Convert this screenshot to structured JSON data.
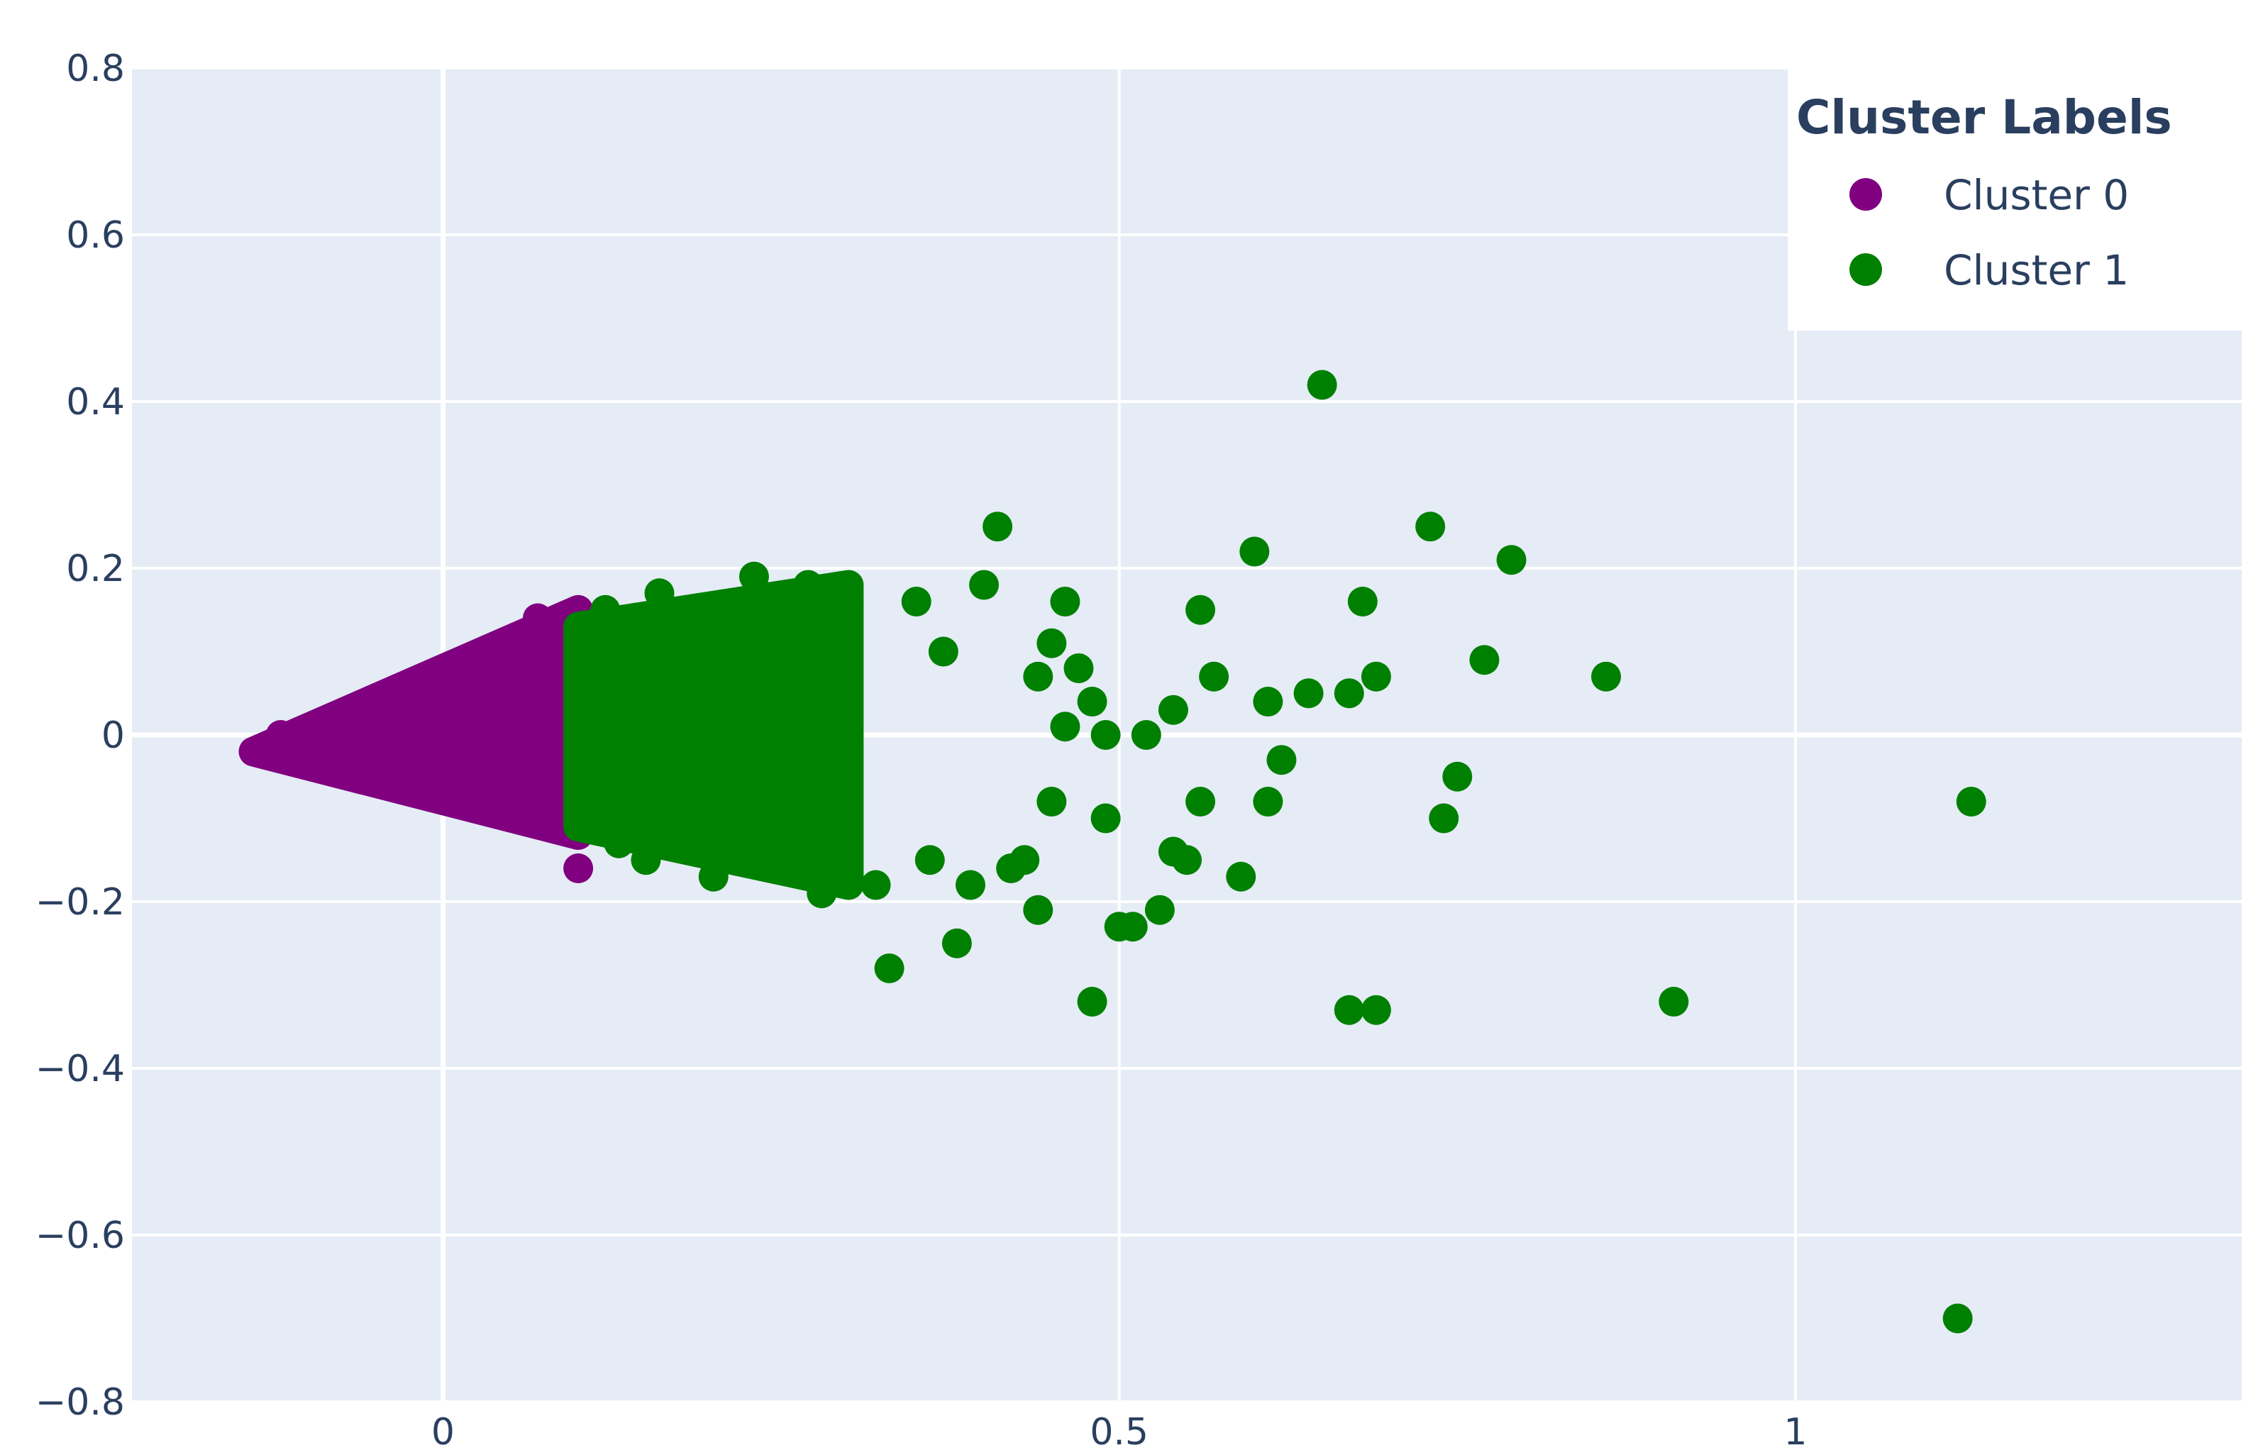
{
  "chart_data": {
    "type": "scatter",
    "title": "",
    "xlabel": "",
    "ylabel": "",
    "xlim": [
      -0.23,
      1.33
    ],
    "ylim": [
      -0.8,
      0.8
    ],
    "x_ticks": [
      0,
      0.5,
      1
    ],
    "x_tick_labels": [
      "0",
      "0.5",
      "1"
    ],
    "y_ticks": [
      0.8,
      0.6,
      0.4,
      0.2,
      0,
      -0.2,
      -0.4,
      -0.6,
      -0.8
    ],
    "y_tick_labels": [
      "0.8",
      "0.6",
      "0.4",
      "0.2",
      "0",
      "−0.2",
      "−0.4",
      "−0.6",
      "−0.8"
    ],
    "grid": true,
    "legend": {
      "title": "Cluster Labels",
      "placement": "top-right"
    },
    "colors": {
      "plot_background": "#e5ecf6",
      "grid": "#ffffff",
      "text": "#2a3f5f"
    },
    "series": [
      {
        "name": "Cluster 0",
        "color": "#800080",
        "shape": "wedge-cluster",
        "dense_region": {
          "x_range": [
            -0.14,
            0.1
          ],
          "apex": [
            -0.14,
            -0.02
          ],
          "top_at_x_max": 0.15,
          "bottom_at_x_max": -0.12
        },
        "points": [
          [
            -0.14,
            -0.02
          ],
          [
            -0.12,
            0.0
          ],
          [
            -0.1,
            -0.03
          ],
          [
            -0.08,
            0.02
          ],
          [
            -0.06,
            -0.04
          ],
          [
            -0.04,
            0.04
          ],
          [
            -0.02,
            -0.05
          ],
          [
            0.0,
            0.06
          ],
          [
            0.02,
            -0.06
          ],
          [
            0.04,
            0.08
          ],
          [
            0.05,
            -0.08
          ],
          [
            0.06,
            0.11
          ],
          [
            0.07,
            0.14
          ],
          [
            0.08,
            -0.1
          ],
          [
            0.09,
            0.12
          ],
          [
            0.1,
            -0.16
          ],
          [
            0.1,
            0.13
          ]
        ]
      },
      {
        "name": "Cluster 1",
        "color": "#008000",
        "shape": "fan-cluster",
        "dense_region": {
          "x_range": [
            0.1,
            0.3
          ],
          "top_at_x_max": 0.18,
          "bottom_at_x_max": -0.18
        },
        "points": [
          [
            0.12,
            0.15
          ],
          [
            0.13,
            -0.13
          ],
          [
            0.14,
            0.12
          ],
          [
            0.15,
            -0.15
          ],
          [
            0.16,
            0.17
          ],
          [
            0.18,
            0.15
          ],
          [
            0.2,
            -0.17
          ],
          [
            0.23,
            0.19
          ],
          [
            0.24,
            0.14
          ],
          [
            0.25,
            -0.16
          ],
          [
            0.27,
            0.18
          ],
          [
            0.28,
            -0.19
          ],
          [
            0.3,
            0.16
          ],
          [
            0.32,
            -0.18
          ],
          [
            0.33,
            -0.28
          ],
          [
            0.35,
            0.16
          ],
          [
            0.36,
            -0.15
          ],
          [
            0.37,
            0.1
          ],
          [
            0.38,
            -0.25
          ],
          [
            0.39,
            -0.18
          ],
          [
            0.4,
            0.18
          ],
          [
            0.41,
            0.25
          ],
          [
            0.42,
            -0.16
          ],
          [
            0.43,
            -0.15
          ],
          [
            0.44,
            0.07
          ],
          [
            0.44,
            -0.21
          ],
          [
            0.45,
            0.11
          ],
          [
            0.45,
            -0.08
          ],
          [
            0.46,
            0.01
          ],
          [
            0.46,
            0.16
          ],
          [
            0.47,
            0.08
          ],
          [
            0.48,
            0.04
          ],
          [
            0.48,
            -0.32
          ],
          [
            0.49,
            0.0
          ],
          [
            0.49,
            -0.1
          ],
          [
            0.5,
            -0.23
          ],
          [
            0.51,
            -0.23
          ],
          [
            0.52,
            0.0
          ],
          [
            0.53,
            -0.21
          ],
          [
            0.54,
            -0.14
          ],
          [
            0.54,
            0.03
          ],
          [
            0.55,
            -0.15
          ],
          [
            0.56,
            0.15
          ],
          [
            0.56,
            -0.08
          ],
          [
            0.57,
            0.07
          ],
          [
            0.59,
            -0.17
          ],
          [
            0.6,
            0.22
          ],
          [
            0.61,
            0.04
          ],
          [
            0.61,
            -0.08
          ],
          [
            0.62,
            -0.03
          ],
          [
            0.64,
            0.05
          ],
          [
            0.65,
            0.42
          ],
          [
            0.67,
            0.05
          ],
          [
            0.67,
            -0.33
          ],
          [
            0.68,
            0.16
          ],
          [
            0.69,
            0.07
          ],
          [
            0.69,
            -0.33
          ],
          [
            0.73,
            0.25
          ],
          [
            0.74,
            -0.1
          ],
          [
            0.75,
            -0.05
          ],
          [
            0.77,
            0.09
          ],
          [
            0.79,
            0.21
          ],
          [
            0.86,
            0.07
          ],
          [
            0.91,
            -0.32
          ],
          [
            1.12,
            -0.7
          ],
          [
            1.13,
            -0.08
          ]
        ]
      }
    ]
  }
}
